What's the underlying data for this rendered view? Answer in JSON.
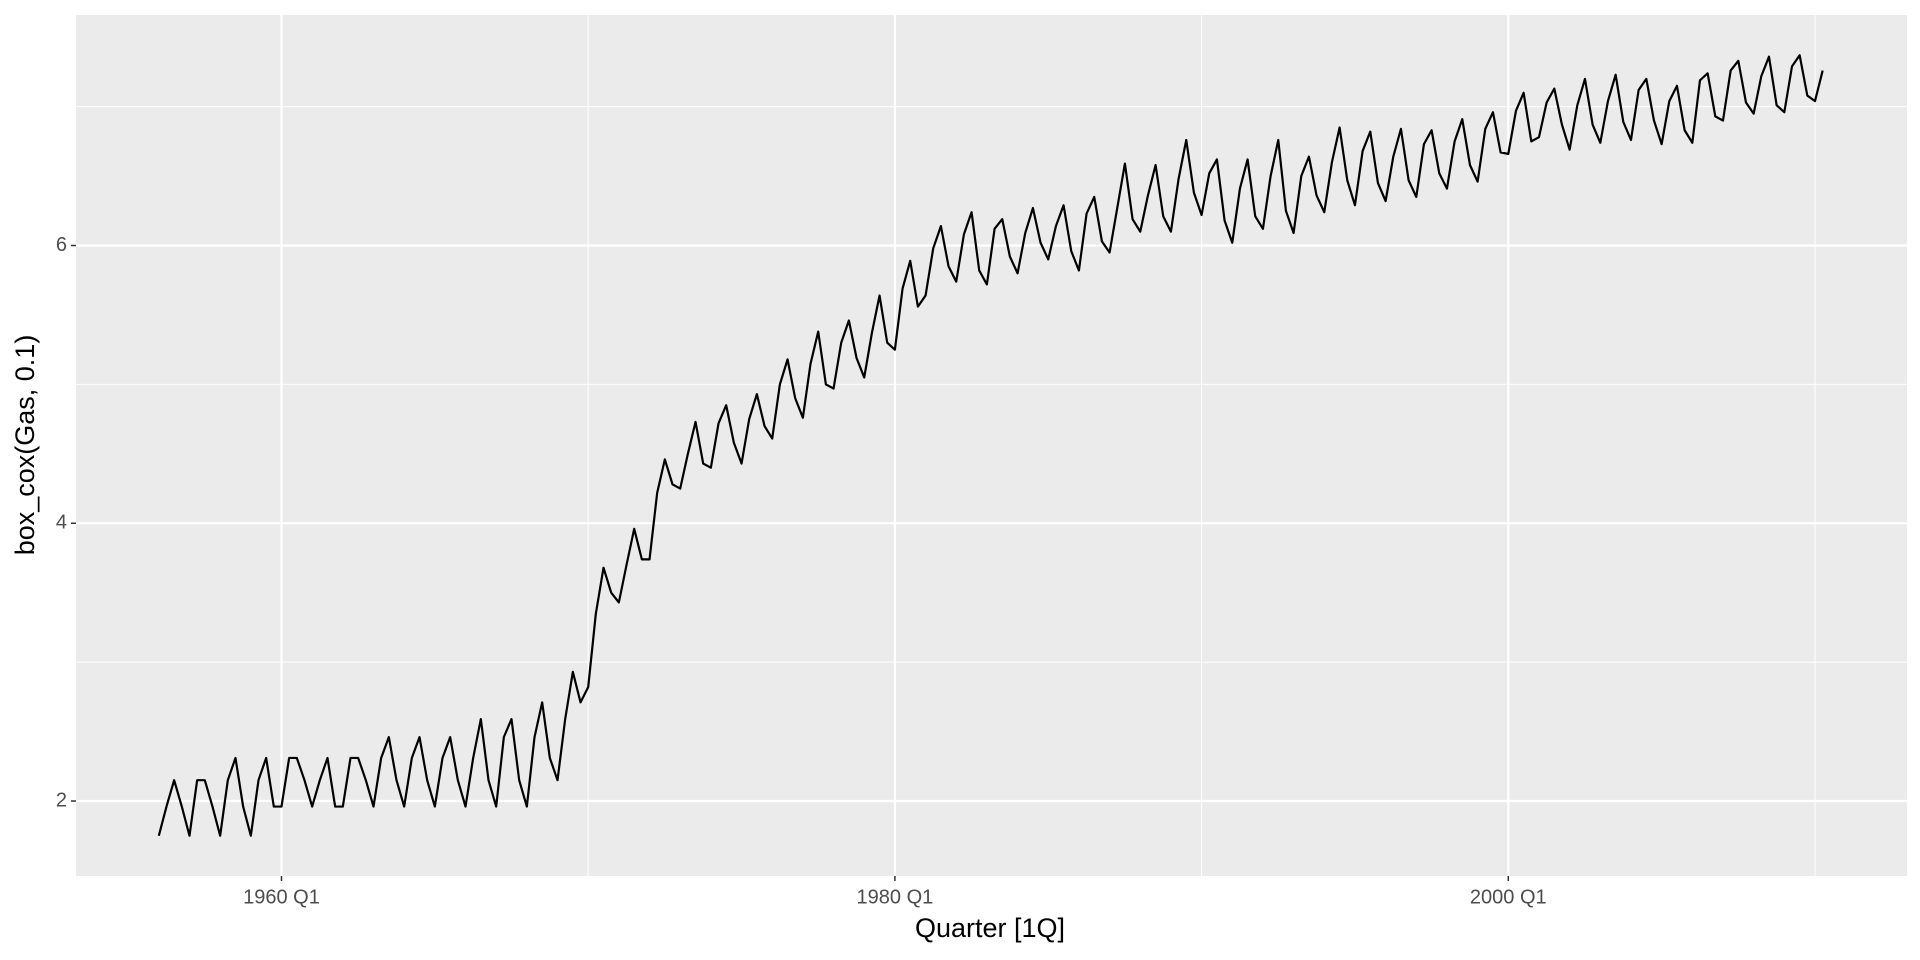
{
  "chart_data": {
    "type": "line",
    "x_label": "Quarter [1Q]",
    "y_label": "box_cox(Gas, 0.1)",
    "x": [
      1956,
      1956.25,
      1956.5,
      1956.75,
      1957,
      1957.25,
      1957.5,
      1957.75,
      1958,
      1958.25,
      1958.5,
      1958.75,
      1959,
      1959.25,
      1959.5,
      1959.75,
      1960,
      1960.25,
      1960.5,
      1960.75,
      1961,
      1961.25,
      1961.5,
      1961.75,
      1962,
      1962.25,
      1962.5,
      1962.75,
      1963,
      1963.25,
      1963.5,
      1963.75,
      1964,
      1964.25,
      1964.5,
      1964.75,
      1965,
      1965.25,
      1965.5,
      1965.75,
      1966,
      1966.25,
      1966.5,
      1966.75,
      1967,
      1967.25,
      1967.5,
      1967.75,
      1968,
      1968.25,
      1968.5,
      1968.75,
      1969,
      1969.25,
      1969.5,
      1969.75,
      1970,
      1970.25,
      1970.5,
      1970.75,
      1971,
      1971.25,
      1971.5,
      1971.75,
      1972,
      1972.25,
      1972.5,
      1972.75,
      1973,
      1973.25,
      1973.5,
      1973.75,
      1974,
      1974.25,
      1974.5,
      1974.75,
      1975,
      1975.25,
      1975.5,
      1975.75,
      1976,
      1976.25,
      1976.5,
      1976.75,
      1977,
      1977.25,
      1977.5,
      1977.75,
      1978,
      1978.25,
      1978.5,
      1978.75,
      1979,
      1979.25,
      1979.5,
      1979.75,
      1980,
      1980.25,
      1980.5,
      1980.75,
      1981,
      1981.25,
      1981.5,
      1981.75,
      1982,
      1982.25,
      1982.5,
      1982.75,
      1983,
      1983.25,
      1983.5,
      1983.75,
      1984,
      1984.25,
      1984.5,
      1984.75,
      1985,
      1985.25,
      1985.5,
      1985.75,
      1986,
      1986.25,
      1986.5,
      1986.75,
      1987,
      1987.25,
      1987.5,
      1987.75,
      1988,
      1988.25,
      1988.5,
      1988.75,
      1989,
      1989.25,
      1989.5,
      1989.75,
      1990,
      1990.25,
      1990.5,
      1990.75,
      1991,
      1991.25,
      1991.5,
      1991.75,
      1992,
      1992.25,
      1992.5,
      1992.75,
      1993,
      1993.25,
      1993.5,
      1993.75,
      1994,
      1994.25,
      1994.5,
      1994.75,
      1995,
      1995.25,
      1995.5,
      1995.75,
      1996,
      1996.25,
      1996.5,
      1996.75,
      1997,
      1997.25,
      1997.5,
      1997.75,
      1998,
      1998.25,
      1998.5,
      1998.75,
      1999,
      1999.25,
      1999.5,
      1999.75,
      2000,
      2000.25,
      2000.5,
      2000.75,
      2001,
      2001.25,
      2001.5,
      2001.75,
      2002,
      2002.25,
      2002.5,
      2002.75,
      2003,
      2003.25,
      2003.5,
      2003.75,
      2004,
      2004.25,
      2004.5,
      2004.75,
      2005,
      2005.25,
      2005.5,
      2005.75,
      2006,
      2006.25,
      2006.5,
      2006.75,
      2007,
      2007.25,
      2007.5,
      2007.75,
      2008,
      2008.25,
      2008.5,
      2008.75,
      2009,
      2009.25,
      2009.5,
      2009.75,
      2010,
      2010.25
    ],
    "series": [
      {
        "color": "#000000",
        "values": [
          1.75,
          1.96,
          2.15,
          1.96,
          1.75,
          2.15,
          2.15,
          1.96,
          1.75,
          2.15,
          2.31,
          1.96,
          1.75,
          2.15,
          2.31,
          1.96,
          1.96,
          2.31,
          2.31,
          2.15,
          1.96,
          2.15,
          2.31,
          1.96,
          1.96,
          2.31,
          2.31,
          2.15,
          1.96,
          2.31,
          2.46,
          2.15,
          1.96,
          2.31,
          2.46,
          2.15,
          1.96,
          2.31,
          2.46,
          2.15,
          1.96,
          2.31,
          2.59,
          2.15,
          1.96,
          2.46,
          2.59,
          2.15,
          1.96,
          2.46,
          2.71,
          2.31,
          2.15,
          2.59,
          2.93,
          2.71,
          2.82,
          3.35,
          3.68,
          3.5,
          3.43,
          3.7,
          3.96,
          3.74,
          3.74,
          4.22,
          4.46,
          4.28,
          4.25,
          4.5,
          4.73,
          4.43,
          4.4,
          4.72,
          4.85,
          4.58,
          4.43,
          4.75,
          4.93,
          4.7,
          4.61,
          5.0,
          5.18,
          4.9,
          4.76,
          5.15,
          5.38,
          5.0,
          4.97,
          5.3,
          5.46,
          5.19,
          5.05,
          5.37,
          5.64,
          5.3,
          5.25,
          5.69,
          5.89,
          5.56,
          5.64,
          5.98,
          6.14,
          5.85,
          5.74,
          6.08,
          6.24,
          5.82,
          5.72,
          6.12,
          6.19,
          5.92,
          5.8,
          6.09,
          6.27,
          6.02,
          5.9,
          6.14,
          6.29,
          5.96,
          5.82,
          6.23,
          6.35,
          6.03,
          5.95,
          6.27,
          6.59,
          6.19,
          6.1,
          6.36,
          6.58,
          6.21,
          6.1,
          6.48,
          6.76,
          6.38,
          6.22,
          6.52,
          6.62,
          6.18,
          6.02,
          6.41,
          6.62,
          6.21,
          6.12,
          6.5,
          6.76,
          6.25,
          6.09,
          6.5,
          6.64,
          6.36,
          6.24,
          6.6,
          6.85,
          6.47,
          6.29,
          6.68,
          6.82,
          6.45,
          6.32,
          6.64,
          6.84,
          6.47,
          6.35,
          6.73,
          6.83,
          6.52,
          6.41,
          6.75,
          6.91,
          6.58,
          6.46,
          6.84,
          6.96,
          6.67,
          6.66,
          6.97,
          7.1,
          6.75,
          6.78,
          7.03,
          7.13,
          6.87,
          6.69,
          7.01,
          7.2,
          6.87,
          6.74,
          7.04,
          7.23,
          6.89,
          6.76,
          7.12,
          7.2,
          6.9,
          6.73,
          7.04,
          7.15,
          6.83,
          6.74,
          7.19,
          7.24,
          6.93,
          6.9,
          7.26,
          7.33,
          7.03,
          6.95,
          7.22,
          7.36,
          7.01,
          6.96,
          7.29,
          7.37,
          7.08,
          7.04,
          7.26
        ]
      }
    ],
    "xlim": [
      1953.3,
      2013.0
    ],
    "xticks": [
      {
        "value": 1960,
        "label": "1960 Q1"
      },
      {
        "value": 1980,
        "label": "1980 Q1"
      },
      {
        "value": 2000,
        "label": "2000 Q1"
      }
    ],
    "minor_xticks": [
      1970,
      1990,
      2010
    ],
    "ylim": [
      1.46,
      7.66
    ],
    "yticks": [
      2,
      4,
      6
    ],
    "minor_yticks": [
      3,
      5,
      7
    ],
    "grid": true
  }
}
